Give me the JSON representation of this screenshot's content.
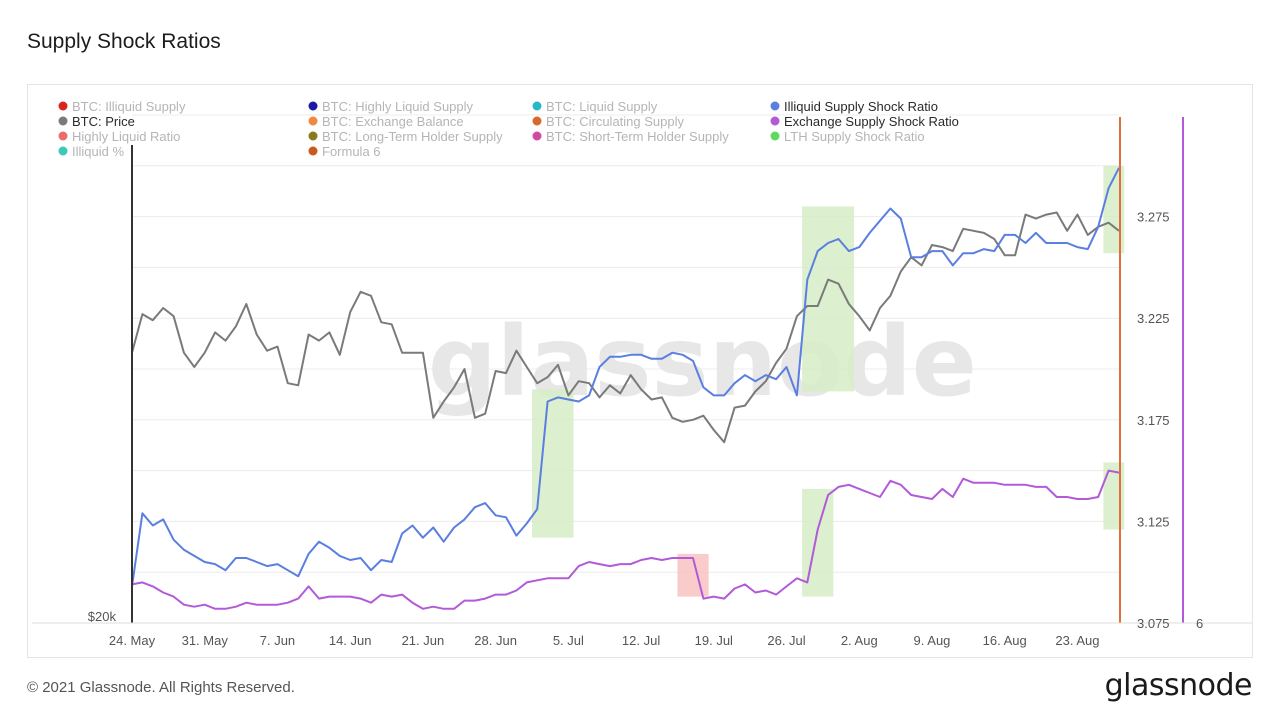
{
  "page": {
    "title": "Supply Shock Ratios",
    "copyright": "© 2021 Glassnode. All Rights Reserved.",
    "logo_text": "glassnode",
    "watermark": "glassnode"
  },
  "chart_data": {
    "type": "line",
    "x_ticks": [
      "24. May",
      "31. May",
      "7. Jun",
      "14. Jun",
      "21. Jun",
      "28. Jun",
      "5. Jul",
      "12. Jul",
      "19. Jul",
      "26. Jul",
      "2. Aug",
      "9. Aug",
      "16. Aug",
      "23. Aug"
    ],
    "x_range": [
      "2021-05-24",
      "2021-08-27"
    ],
    "left_axis": {
      "tick_label": "$20k"
    },
    "right_axis": {
      "ticks": [
        3.075,
        3.125,
        3.175,
        3.225,
        3.275
      ],
      "tick_labels": [
        "3.075",
        "3.125",
        "3.175",
        "3.225",
        "3.275"
      ],
      "range": [
        3.075,
        3.275
      ]
    },
    "right_axis_2": {
      "tick_label": "6"
    },
    "legend": [
      {
        "name": "BTC: Illiquid Supply",
        "color": "#d7261e",
        "active": false
      },
      {
        "name": "BTC: Highly Liquid Supply",
        "color": "#1a1aa6",
        "active": false
      },
      {
        "name": "BTC: Liquid Supply",
        "color": "#26b8c9",
        "active": false
      },
      {
        "name": "Illiquid Supply Shock Ratio",
        "color": "#5b7fe0",
        "active": true
      },
      {
        "name": "BTC: Price",
        "color": "#7a7a7a",
        "active": true
      },
      {
        "name": "BTC: Exchange Balance",
        "color": "#f0883e",
        "active": false
      },
      {
        "name": "BTC: Circulating Supply",
        "color": "#d9682a",
        "active": false
      },
      {
        "name": "Exchange Supply Shock Ratio",
        "color": "#b25ad8",
        "active": true
      },
      {
        "name": "Highly Liquid Ratio",
        "color": "#ee6b6b",
        "active": false
      },
      {
        "name": "BTC: Long-Term Holder Supply",
        "color": "#8a7a1c",
        "active": false
      },
      {
        "name": "BTC: Short-Term Holder Supply",
        "color": "#d14aa0",
        "active": false
      },
      {
        "name": "LTH Supply Shock Ratio",
        "color": "#5fd95f",
        "active": false
      },
      {
        "name": "Illiquid %",
        "color": "#3cc9b8",
        "active": false
      },
      {
        "name": "Formula 6",
        "color": "#c95a1e",
        "active": false
      }
    ],
    "series": [
      {
        "name": "BTC: Price",
        "color": "#7a7a7a",
        "x": [
          0,
          1,
          2,
          3,
          4,
          5,
          6,
          7,
          8,
          9,
          10,
          11,
          12,
          13,
          14,
          15,
          16,
          17,
          18,
          19,
          20,
          21,
          22,
          23,
          24,
          25,
          26,
          27,
          28,
          29,
          30,
          31,
          32,
          33,
          34,
          35,
          36,
          37,
          38,
          39,
          40,
          41,
          42,
          43,
          44,
          45,
          46,
          47,
          48,
          49,
          50,
          51,
          52,
          53,
          54,
          55,
          56,
          57,
          58,
          59,
          60,
          61,
          62,
          63,
          64,
          65,
          66,
          67,
          68,
          69,
          70,
          71,
          72,
          73,
          74,
          75,
          76,
          77,
          78,
          79,
          80,
          81,
          82,
          83,
          84,
          85,
          86,
          87,
          88,
          89,
          90,
          91,
          92,
          93,
          94,
          95
        ],
        "y": [
          3.208,
          3.227,
          3.224,
          3.23,
          3.226,
          3.208,
          3.201,
          3.208,
          3.218,
          3.214,
          3.221,
          3.232,
          3.217,
          3.209,
          3.211,
          3.193,
          3.192,
          3.217,
          3.214,
          3.218,
          3.207,
          3.228,
          3.238,
          3.236,
          3.223,
          3.222,
          3.208,
          3.208,
          3.208,
          3.176,
          3.184,
          3.191,
          3.2,
          3.176,
          3.178,
          3.199,
          3.198,
          3.209,
          3.201,
          3.193,
          3.196,
          3.202,
          3.187,
          3.194,
          3.193,
          3.186,
          3.192,
          3.188,
          3.197,
          3.19,
          3.185,
          3.186,
          3.176,
          3.174,
          3.175,
          3.177,
          3.17,
          3.164,
          3.181,
          3.182,
          3.189,
          3.194,
          3.203,
          3.21,
          3.226,
          3.231,
          3.231,
          3.244,
          3.242,
          3.232,
          3.226,
          3.219,
          3.23,
          3.236,
          3.248,
          3.255,
          3.251,
          3.261,
          3.26,
          3.258,
          3.269,
          3.268,
          3.267,
          3.264,
          3.256,
          3.256,
          3.276,
          3.274,
          3.276,
          3.277,
          3.268,
          3.276,
          3.266,
          3.27,
          3.272,
          3.268
        ]
      },
      {
        "name": "Illiquid Supply Shock Ratio",
        "color": "#5b7fe0",
        "x": [
          0,
          1,
          2,
          3,
          4,
          5,
          6,
          7,
          8,
          9,
          10,
          11,
          12,
          13,
          14,
          15,
          16,
          17,
          18,
          19,
          20,
          21,
          22,
          23,
          24,
          25,
          26,
          27,
          28,
          29,
          30,
          31,
          32,
          33,
          34,
          35,
          36,
          37,
          38,
          39,
          40,
          41,
          42,
          43,
          44,
          45,
          46,
          47,
          48,
          49,
          50,
          51,
          52,
          53,
          54,
          55,
          56,
          57,
          58,
          59,
          60,
          61,
          62,
          63,
          64,
          65,
          66,
          67,
          68,
          69,
          70,
          71,
          72,
          73,
          74,
          75,
          76,
          77,
          78,
          79,
          80,
          81,
          82,
          83,
          84,
          85,
          86,
          87,
          88,
          89,
          90,
          91,
          92,
          93,
          94,
          95
        ],
        "y": [
          3.093,
          3.129,
          3.123,
          3.126,
          3.116,
          3.111,
          3.108,
          3.105,
          3.104,
          3.101,
          3.107,
          3.107,
          3.105,
          3.103,
          3.104,
          3.101,
          3.098,
          3.109,
          3.115,
          3.112,
          3.108,
          3.106,
          3.107,
          3.101,
          3.106,
          3.105,
          3.119,
          3.123,
          3.117,
          3.122,
          3.115,
          3.122,
          3.126,
          3.132,
          3.134,
          3.128,
          3.127,
          3.118,
          3.124,
          3.131,
          3.184,
          3.186,
          3.185,
          3.184,
          3.187,
          3.201,
          3.206,
          3.206,
          3.207,
          3.207,
          3.205,
          3.205,
          3.208,
          3.207,
          3.204,
          3.191,
          3.187,
          3.187,
          3.193,
          3.197,
          3.194,
          3.197,
          3.195,
          3.201,
          3.187,
          3.244,
          3.258,
          3.262,
          3.264,
          3.258,
          3.26,
          3.267,
          3.273,
          3.279,
          3.274,
          3.255,
          3.255,
          3.258,
          3.258,
          3.251,
          3.257,
          3.257,
          3.259,
          3.258,
          3.266,
          3.266,
          3.262,
          3.267,
          3.262,
          3.262,
          3.262,
          3.26,
          3.259,
          3.27,
          3.289,
          3.299
        ]
      },
      {
        "name": "Exchange Supply Shock Ratio",
        "color": "#b25ad8",
        "x": [
          0,
          1,
          2,
          3,
          4,
          5,
          6,
          7,
          8,
          9,
          10,
          11,
          12,
          13,
          14,
          15,
          16,
          17,
          18,
          19,
          20,
          21,
          22,
          23,
          24,
          25,
          26,
          27,
          28,
          29,
          30,
          31,
          32,
          33,
          34,
          35,
          36,
          37,
          38,
          39,
          40,
          41,
          42,
          43,
          44,
          45,
          46,
          47,
          48,
          49,
          50,
          51,
          52,
          53,
          54,
          55,
          56,
          57,
          58,
          59,
          60,
          61,
          62,
          63,
          64,
          65,
          66,
          67,
          68,
          69,
          70,
          71,
          72,
          73,
          74,
          75,
          76,
          77,
          78,
          79,
          80,
          81,
          82,
          83,
          84,
          85,
          86,
          87,
          88,
          89,
          90,
          91,
          92,
          93,
          94,
          95
        ],
        "y": [
          3.094,
          3.095,
          3.093,
          3.09,
          3.088,
          3.084,
          3.083,
          3.084,
          3.082,
          3.082,
          3.083,
          3.085,
          3.084,
          3.084,
          3.084,
          3.085,
          3.087,
          3.093,
          3.087,
          3.088,
          3.088,
          3.088,
          3.087,
          3.085,
          3.089,
          3.088,
          3.089,
          3.085,
          3.082,
          3.083,
          3.082,
          3.082,
          3.086,
          3.086,
          3.087,
          3.089,
          3.089,
          3.091,
          3.095,
          3.096,
          3.097,
          3.097,
          3.097,
          3.103,
          3.105,
          3.104,
          3.103,
          3.104,
          3.104,
          3.106,
          3.107,
          3.106,
          3.107,
          3.107,
          3.107,
          3.087,
          3.088,
          3.087,
          3.092,
          3.094,
          3.09,
          3.091,
          3.089,
          3.093,
          3.097,
          3.095,
          3.121,
          3.138,
          3.142,
          3.143,
          3.141,
          3.139,
          3.137,
          3.145,
          3.143,
          3.138,
          3.137,
          3.136,
          3.141,
          3.137,
          3.146,
          3.144,
          3.144,
          3.144,
          3.143,
          3.143,
          3.143,
          3.142,
          3.142,
          3.137,
          3.137,
          3.136,
          3.136,
          3.137,
          3.15,
          3.149
        ]
      }
    ],
    "highlight_bands": [
      {
        "color": "#d6ecc6",
        "x0": 38.5,
        "x1": 42.5,
        "y0": 3.117,
        "y1": 3.19
      },
      {
        "color": "#d6ecc6",
        "x0": 64.5,
        "x1": 69.5,
        "y0": 3.189,
        "y1": 3.28
      },
      {
        "color": "#d6ecc6",
        "x0": 93.5,
        "x1": 95.5,
        "y0": 3.257,
        "y1": 3.3
      },
      {
        "color": "#d6ecc6",
        "x0": 64.5,
        "x1": 67.5,
        "y0": 3.088,
        "y1": 3.141
      },
      {
        "color": "#d6ecc6",
        "x0": 93.5,
        "x1": 95.5,
        "y0": 3.121,
        "y1": 3.154
      },
      {
        "color": "#f8c2c2",
        "x0": 52.5,
        "x1": 55.5,
        "y0": 3.088,
        "y1": 3.109
      }
    ]
  }
}
